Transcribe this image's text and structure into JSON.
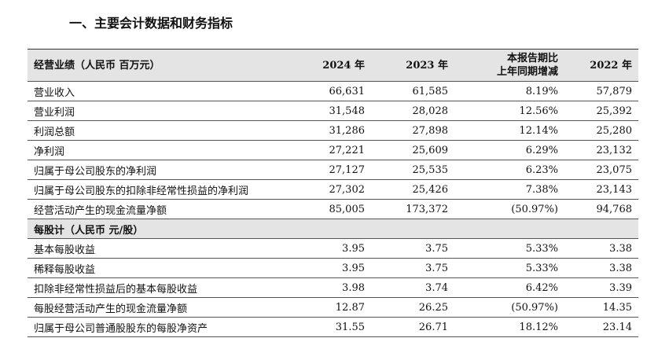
{
  "header": {
    "title": "一、主要会计数据和财务指标"
  },
  "table": {
    "columns": [
      "经营业绩（人民币 百万元）",
      "2024 年",
      "2023 年",
      "本报告期比\n上年同期增减",
      "2022 年"
    ],
    "rows": [
      [
        "营业收入",
        "66,631",
        "61,585",
        "8.19%",
        "57,879"
      ],
      [
        "营业利润",
        "31,548",
        "28,028",
        "12.56%",
        "25,392"
      ],
      [
        "利润总额",
        "31,286",
        "27,898",
        "12.14%",
        "25,280"
      ],
      [
        "净利润",
        "27,221",
        "25,609",
        "6.29%",
        "23,132"
      ],
      [
        "归属于母公司股东的净利润",
        "27,127",
        "25,535",
        "6.23%",
        "23,075"
      ],
      [
        "归属于母公司股东的扣除非经常性损益的净利润",
        "27,302",
        "25,426",
        "7.38%",
        "23,143"
      ],
      [
        "经营活动产生的现金流量净额",
        "85,005",
        "173,372",
        "(50.97%)",
        "94,768"
      ],
      [
        "每股计（人民币 元/股）"
      ],
      [
        "基本每股收益",
        "3.95",
        "3.75",
        "5.33%",
        "3.38"
      ],
      [
        "稀释每股收益",
        "3.95",
        "3.75",
        "5.33%",
        "3.38"
      ],
      [
        "扣除非经常性损益后的基本每股收益",
        "3.98",
        "3.74",
        "6.42%",
        "3.39"
      ],
      [
        "每股经营活动产生的现金流量净额",
        "12.87",
        "26.25",
        "(50.97%)",
        "14.35"
      ],
      [
        "归属于母公司普通股股东的每股净资产",
        "31.55",
        "26.71",
        "18.12%",
        "23.14"
      ]
    ]
  }
}
